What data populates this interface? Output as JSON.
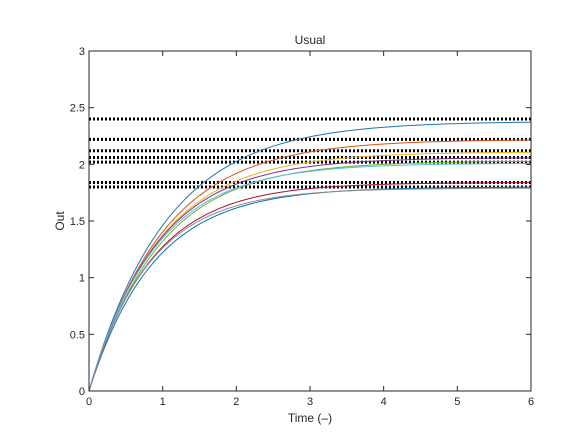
{
  "chart_data": {
    "type": "line",
    "title": "Usual",
    "xlabel": "Time (–)",
    "ylabel": "Out",
    "xlim": [
      0,
      6
    ],
    "ylim": [
      0,
      3
    ],
    "xticks": [
      "0",
      "1",
      "2",
      "3",
      "4",
      "5",
      "6"
    ],
    "yticks": [
      "0",
      "0.5",
      "1",
      "1.5",
      "2",
      "2.5",
      "3"
    ],
    "grid": false,
    "legend": "none",
    "series": [
      {
        "color": "#1f77b4",
        "final": 2.38,
        "tau": 1.05,
        "style": "solid"
      },
      {
        "color": "#d95319",
        "final": 2.22,
        "tau": 1.0,
        "style": "solid"
      },
      {
        "color": "#edb120",
        "final": 2.11,
        "tau": 0.95,
        "style": "solid"
      },
      {
        "color": "#7e2f8e",
        "final": 2.06,
        "tau": 0.92,
        "style": "solid"
      },
      {
        "color": "#77ac30",
        "final": 2.03,
        "tau": 0.95,
        "style": "solid"
      },
      {
        "color": "#4dbeee",
        "final": 2.01,
        "tau": 0.9,
        "style": "solid"
      },
      {
        "color": "#a2142f",
        "final": 1.84,
        "tau": 0.85,
        "style": "solid"
      },
      {
        "color": "#0072bd",
        "final": 1.8,
        "tau": 0.88,
        "style": "solid"
      },
      {
        "color": "#8c8c8c",
        "final": 1.79,
        "tau": 0.82,
        "style": "solid"
      }
    ],
    "reference_lines": [
      {
        "y": 2.4,
        "style": "dotted",
        "color": "#000000"
      },
      {
        "y": 2.22,
        "style": "dotted",
        "color": "#000000"
      },
      {
        "y": 2.12,
        "style": "dotted",
        "color": "#000000"
      },
      {
        "y": 2.06,
        "style": "dotted",
        "color": "#000000"
      },
      {
        "y": 2.02,
        "style": "dotted",
        "color": "#000000"
      },
      {
        "y": 1.84,
        "style": "dotted",
        "color": "#000000"
      },
      {
        "y": 1.8,
        "style": "dotted",
        "color": "#000000"
      }
    ]
  }
}
